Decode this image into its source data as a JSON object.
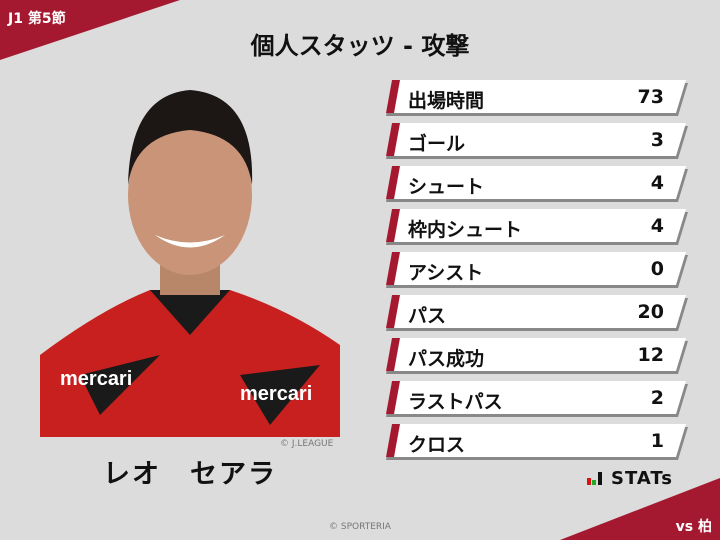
{
  "header": {
    "round": "J1 第5節",
    "title": "個人スタッツ - 攻撃"
  },
  "player": {
    "name": "レオ　セアラ",
    "photo_credit": "© J.LEAGUE"
  },
  "stats": [
    {
      "label": "出場時間",
      "value": "73"
    },
    {
      "label": "ゴール",
      "value": "3"
    },
    {
      "label": "シュート",
      "value": "4"
    },
    {
      "label": "枠内シュート",
      "value": "4"
    },
    {
      "label": "アシスト",
      "value": "0"
    },
    {
      "label": "パス",
      "value": "20"
    },
    {
      "label": "パス成功",
      "value": "12"
    },
    {
      "label": "ラストパス",
      "value": "2"
    },
    {
      "label": "クロス",
      "value": "1"
    }
  ],
  "footer": {
    "brand": "STATs",
    "opponent": "vs 柏",
    "credit": "© SPORTERIA"
  },
  "colors": {
    "accent": "#a51930",
    "background": "#dcdcdc"
  }
}
